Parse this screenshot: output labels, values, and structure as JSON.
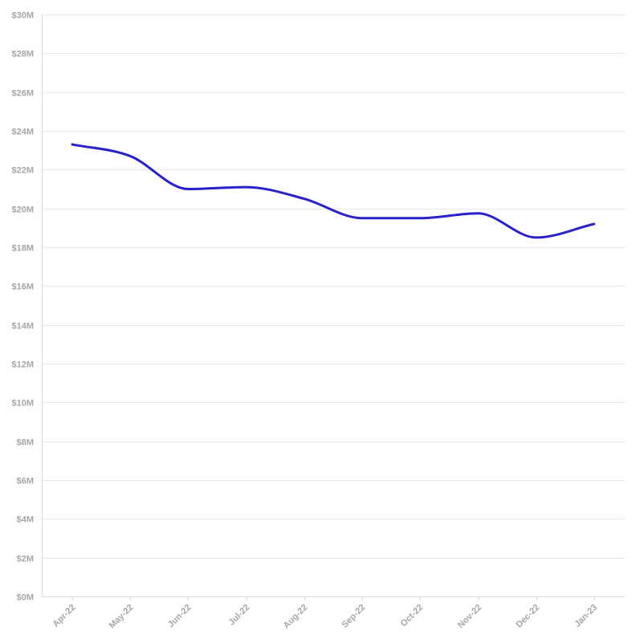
{
  "chart_data": {
    "type": "line",
    "x": [
      "Apr-22",
      "May-22",
      "Jun-22",
      "Jul-22",
      "Aug-22",
      "Sep-22",
      "Oct-22",
      "Nov-22",
      "Dec-22",
      "Jan-23"
    ],
    "series": [
      {
        "values": [
          23.3,
          22.7,
          21.0,
          21.1,
          20.5,
          19.5,
          19.5,
          19.75,
          18.5,
          19.2
        ],
        "color": "#2a22c9"
      }
    ],
    "y_ticks": [
      {
        "value": 0,
        "label": "$0M"
      },
      {
        "value": 2,
        "label": "$2M"
      },
      {
        "value": 4,
        "label": "$4M"
      },
      {
        "value": 6,
        "label": "$6M"
      },
      {
        "value": 8,
        "label": "$8M"
      },
      {
        "value": 10,
        "label": "$10M"
      },
      {
        "value": 12,
        "label": "$12M"
      },
      {
        "value": 14,
        "label": "$14M"
      },
      {
        "value": 16,
        "label": "$16M"
      },
      {
        "value": 18,
        "label": "$18M"
      },
      {
        "value": 20,
        "label": "$20M"
      },
      {
        "value": 22,
        "label": "$22M"
      },
      {
        "value": 24,
        "label": "$24M"
      },
      {
        "value": 26,
        "label": "$26M"
      },
      {
        "value": 28,
        "label": "$28M"
      },
      {
        "value": 30,
        "label": "$30M"
      }
    ],
    "ylim": [
      0,
      30
    ],
    "grid": true,
    "legend": "none",
    "colors": {
      "line": "#2a22c9",
      "grid": "#e6e6e6",
      "tick_text": "#a6a6a6"
    }
  }
}
